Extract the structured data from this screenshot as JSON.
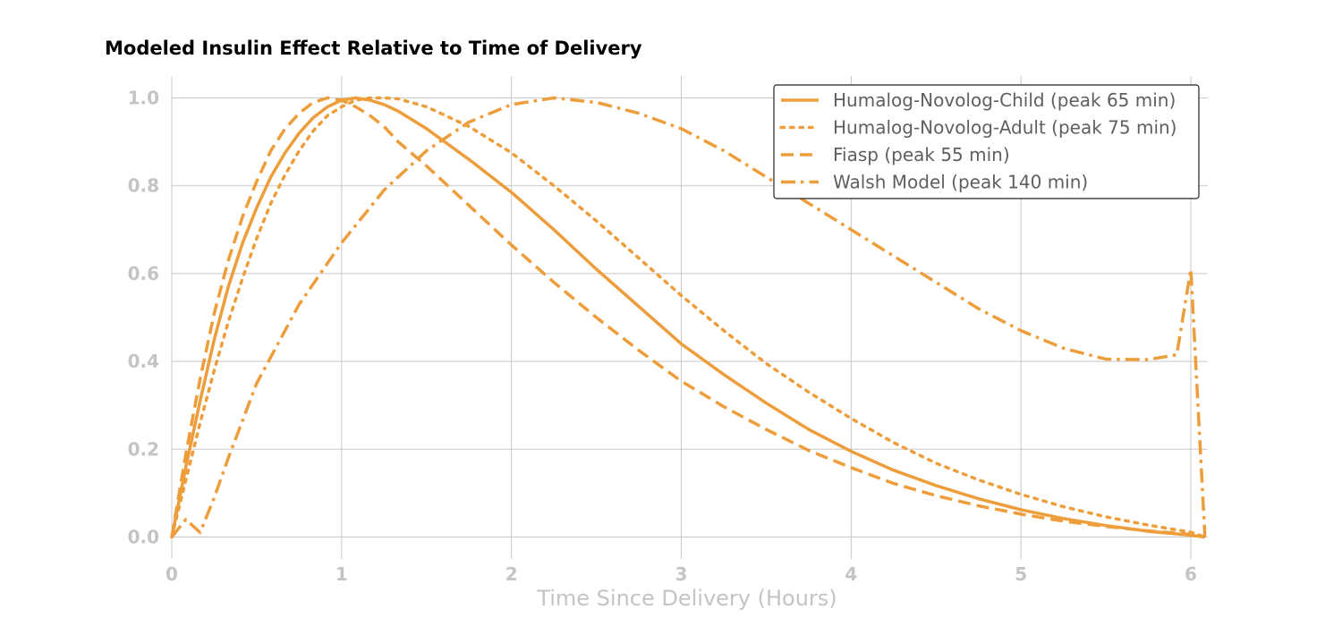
{
  "chart_data": {
    "type": "line",
    "title": "Modeled Insulin Effect Relative to Time of Delivery",
    "xlabel": "Time Since Delivery (Hours)",
    "ylabel": "",
    "xlim": [
      0,
      6.1
    ],
    "ylim": [
      -0.05,
      1.05
    ],
    "xticks": [
      0,
      1,
      2,
      3,
      4,
      5,
      6
    ],
    "yticks": [
      "0.0",
      "0.2",
      "0.4",
      "0.6",
      "0.8",
      "1.0"
    ],
    "grid": true,
    "legend_position": "top-right",
    "color": "#ee9d3b",
    "series": [
      {
        "name": "Humalog-Novolog-Child (peak 65 min)",
        "style": "solid",
        "x": [
          0,
          0.083,
          0.167,
          0.25,
          0.333,
          0.417,
          0.5,
          0.583,
          0.667,
          0.75,
          0.833,
          0.917,
          1.0,
          1.083,
          1.167,
          1.25,
          1.333,
          1.5,
          1.75,
          2.0,
          2.25,
          2.5,
          2.75,
          3.0,
          3.25,
          3.5,
          3.75,
          4.0,
          4.25,
          4.5,
          4.75,
          5.0,
          5.25,
          5.5,
          5.75,
          6.0,
          6.083
        ],
        "y": [
          0.0,
          0.16,
          0.31,
          0.45,
          0.57,
          0.67,
          0.75,
          0.82,
          0.875,
          0.92,
          0.955,
          0.98,
          0.995,
          1.0,
          0.995,
          0.985,
          0.97,
          0.93,
          0.86,
          0.785,
          0.7,
          0.61,
          0.525,
          0.44,
          0.37,
          0.305,
          0.245,
          0.195,
          0.152,
          0.117,
          0.087,
          0.062,
          0.042,
          0.026,
          0.013,
          0.004,
          0.0
        ]
      },
      {
        "name": "Humalog-Novolog-Adult (peak 75 min)",
        "style": "dotted",
        "x": [
          0,
          0.083,
          0.167,
          0.25,
          0.333,
          0.417,
          0.5,
          0.583,
          0.667,
          0.75,
          0.833,
          0.917,
          1.0,
          1.083,
          1.167,
          1.25,
          1.333,
          1.5,
          1.75,
          2.0,
          2.25,
          2.5,
          2.75,
          3.0,
          3.25,
          3.5,
          3.75,
          4.0,
          4.25,
          4.5,
          4.75,
          5.0,
          5.25,
          5.5,
          5.75,
          6.0,
          6.083
        ],
        "y": [
          0.0,
          0.13,
          0.26,
          0.38,
          0.49,
          0.59,
          0.68,
          0.76,
          0.825,
          0.88,
          0.925,
          0.96,
          0.98,
          0.995,
          1.0,
          1.0,
          0.998,
          0.98,
          0.935,
          0.875,
          0.8,
          0.72,
          0.635,
          0.55,
          0.47,
          0.395,
          0.33,
          0.27,
          0.215,
          0.168,
          0.13,
          0.097,
          0.069,
          0.046,
          0.027,
          0.011,
          0.0
        ]
      },
      {
        "name": "Fiasp (peak 55 min)",
        "style": "dashed",
        "x": [
          0,
          0.083,
          0.167,
          0.25,
          0.333,
          0.417,
          0.5,
          0.583,
          0.667,
          0.75,
          0.833,
          0.917,
          1.0,
          1.083,
          1.167,
          1.25,
          1.333,
          1.5,
          1.75,
          2.0,
          2.25,
          2.5,
          2.75,
          3.0,
          3.25,
          3.5,
          3.75,
          4.0,
          4.25,
          4.5,
          4.75,
          5.0,
          5.25,
          5.5,
          5.75,
          6.0,
          6.083
        ],
        "y": [
          0.0,
          0.19,
          0.36,
          0.51,
          0.63,
          0.73,
          0.81,
          0.88,
          0.93,
          0.965,
          0.99,
          1.0,
          0.995,
          0.98,
          0.96,
          0.935,
          0.9,
          0.845,
          0.755,
          0.665,
          0.58,
          0.5,
          0.425,
          0.355,
          0.297,
          0.245,
          0.197,
          0.158,
          0.122,
          0.094,
          0.071,
          0.052,
          0.036,
          0.024,
          0.014,
          0.006,
          0.0
        ]
      },
      {
        "name": "Walsh Model (peak 140 min)",
        "style": "dashdot",
        "x": [
          0,
          0.083,
          0.167,
          0.25,
          0.333,
          0.5,
          0.75,
          1.0,
          1.25,
          1.5,
          1.75,
          2.0,
          2.25,
          2.5,
          2.75,
          3.0,
          3.25,
          3.5,
          3.75,
          4.0,
          4.25,
          4.5,
          4.75,
          5.0,
          5.25,
          5.5,
          5.75,
          5.917,
          6.0,
          6.083
        ],
        "y": [
          0.0,
          0.04,
          0.01,
          0.09,
          0.18,
          0.35,
          0.53,
          0.67,
          0.79,
          0.88,
          0.945,
          0.985,
          1.0,
          0.99,
          0.965,
          0.93,
          0.88,
          0.82,
          0.76,
          0.7,
          0.64,
          0.58,
          0.52,
          0.47,
          0.43,
          0.405,
          0.404,
          0.415,
          0.61,
          0.0
        ]
      }
    ]
  }
}
